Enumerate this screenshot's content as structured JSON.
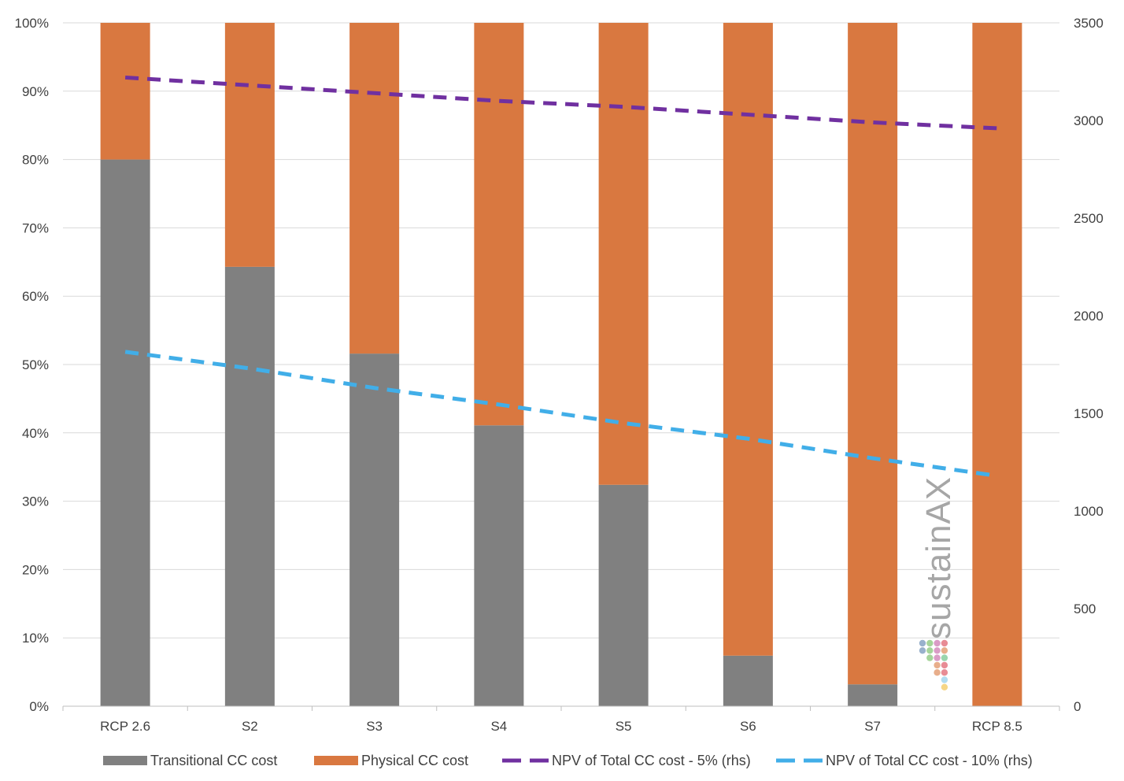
{
  "chart_data": {
    "type": "bar",
    "stacked": true,
    "categories": [
      "RCP 2.6",
      "S2",
      "S3",
      "S4",
      "S5",
      "S6",
      "S7",
      "RCP 8.5"
    ],
    "y_left": {
      "ylim": [
        0,
        100
      ],
      "ticks": [
        0,
        10,
        20,
        30,
        40,
        50,
        60,
        70,
        80,
        90,
        100
      ],
      "tick_labels": [
        "0%",
        "10%",
        "20%",
        "30%",
        "40%",
        "50%",
        "60%",
        "70%",
        "80%",
        "90%",
        "100%"
      ]
    },
    "y_right": {
      "ylim": [
        0,
        3500
      ],
      "ticks": [
        0,
        500,
        1000,
        1500,
        2000,
        2500,
        3000,
        3500
      ],
      "tick_labels": [
        "0",
        "500",
        "1000",
        "1500",
        "2000",
        "2500",
        "3000",
        "3500"
      ]
    },
    "bar_series": [
      {
        "name": "Transitional CC cost",
        "color": "#808080",
        "values": [
          80,
          64.3,
          51.6,
          41.1,
          32.4,
          7.4,
          3.2,
          0
        ]
      },
      {
        "name": "Physical CC cost",
        "color": "#d97840",
        "values": [
          20,
          35.7,
          48.4,
          58.9,
          67.6,
          92.6,
          96.8,
          100
        ]
      }
    ],
    "line_series": [
      {
        "name": "NPV of Total CC cost - 5% (rhs)",
        "color": "#7030a0",
        "axis": "right",
        "values": [
          3220,
          3180,
          3140,
          3100,
          3070,
          3030,
          2990,
          2960
        ]
      },
      {
        "name": "NPV of Total CC cost - 10% (rhs)",
        "color": "#41aee8",
        "axis": "right",
        "values": [
          1815,
          1730,
          1630,
          1545,
          1450,
          1370,
          1270,
          1180
        ]
      }
    ],
    "legend_position": "bottom",
    "grid": true,
    "watermark": "sustainAX"
  }
}
